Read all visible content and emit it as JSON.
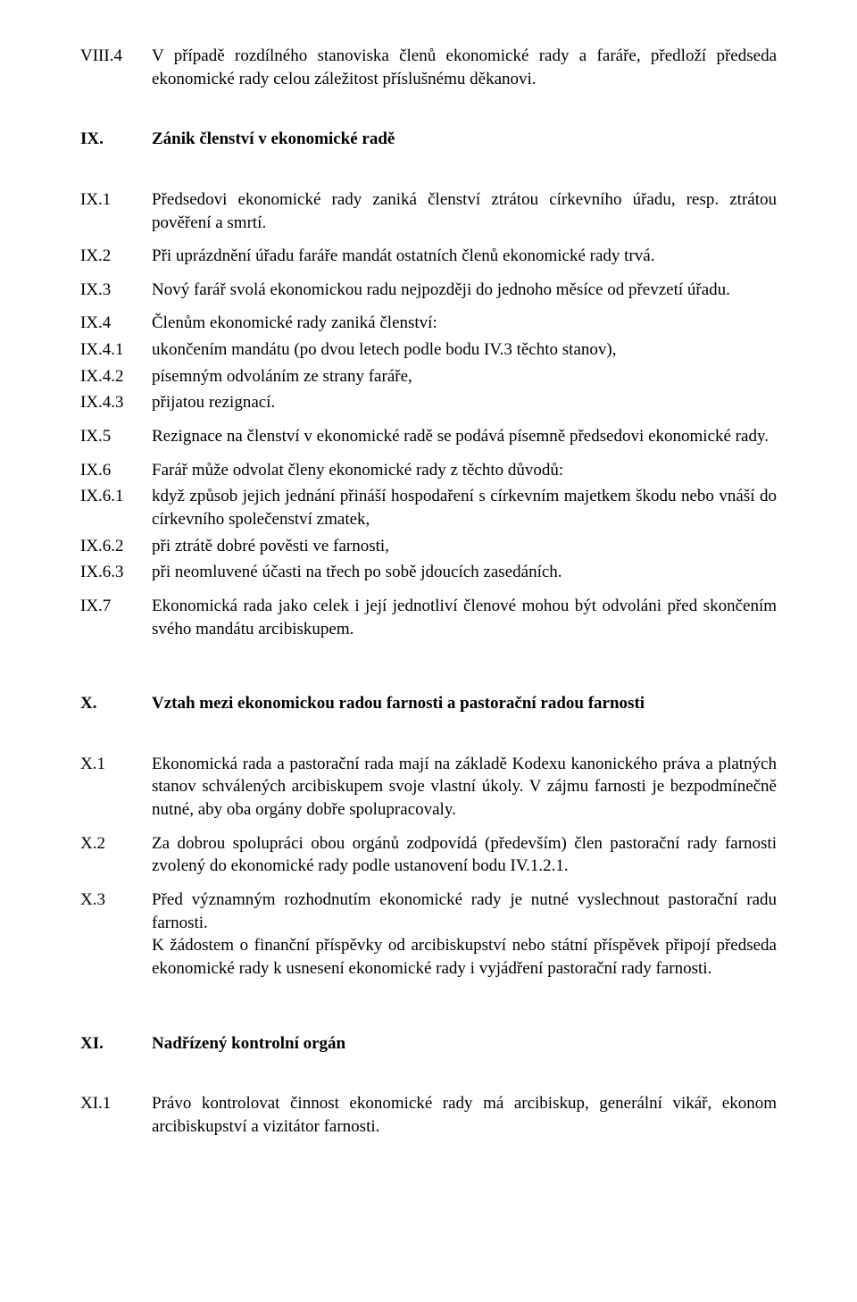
{
  "font": {
    "family": "Times New Roman",
    "size_pt": 14,
    "color": "#000000"
  },
  "background_color": "#ffffff",
  "items": [
    {
      "label": "VIII.4",
      "text": "V případě rozdílného stanoviska členů ekonomické rady a faráře, předloží předseda ekonomické rady celou záležitost příslušnému děkanovi.",
      "bold": false,
      "spacer_after": "section"
    },
    {
      "label": "IX.",
      "text": "Zánik členství v ekonomické radě",
      "bold": true,
      "spacer_after": "section"
    },
    {
      "label": "IX.1",
      "text": "Předsedovi ekonomické rady zaniká členství ztrátou církevního úřadu, resp. ztrátou pověření a smrtí.",
      "bold": false
    },
    {
      "label": "IX.2",
      "text": "Při uprázdnění úřadu faráře mandát ostatních členů ekonomické rady trvá.",
      "bold": false
    },
    {
      "label": "IX.3",
      "text": "Nový farář svolá ekonomickou radu nejpozději do jednoho měsíce od převzetí úřadu.",
      "bold": false
    },
    {
      "label": "IX.4",
      "text": "Členům ekonomické rady zaniká členství:",
      "bold": false,
      "tight": true
    },
    {
      "label": "IX.4.1",
      "text": "ukončením mandátu (po dvou letech podle bodu IV.3 těchto stanov),",
      "bold": false,
      "tight": true
    },
    {
      "label": "IX.4.2",
      "text": "písemným odvoláním ze strany faráře,",
      "bold": false,
      "tight": true
    },
    {
      "label": "IX.4.3",
      "text": "přijatou rezignací.",
      "bold": false
    },
    {
      "label": "IX.5",
      "text": "Rezignace na členství v ekonomické radě se podává písemně předsedovi ekonomické rady.",
      "bold": false
    },
    {
      "label": "IX.6",
      "text": "Farář může odvolat členy ekonomické rady z těchto důvodů:",
      "bold": false,
      "tight": true
    },
    {
      "label": "IX.6.1",
      "text": "když způsob jejich jednání přináší hospodaření s církevním majetkem škodu nebo vnáší do církevního společenství zmatek,",
      "bold": false,
      "tight": true
    },
    {
      "label": "IX.6.2",
      "text": "při ztrátě dobré pověsti ve farnosti,",
      "bold": false,
      "tight": true
    },
    {
      "label": "IX.6.3",
      "text": "při neomluvené účasti na třech po sobě jdoucích zasedáních.",
      "bold": false
    },
    {
      "label": "IX.7",
      "text": "Ekonomická rada jako celek i její jednotliví členové mohou být odvoláni před skončením svého mandátu arcibiskupem.",
      "bold": false,
      "spacer_after": "big"
    },
    {
      "label": "X.",
      "text": "Vztah mezi ekonomickou radou farnosti a pastorační radou farnosti",
      "bold": true,
      "spacer_after": "section"
    },
    {
      "label": "X.1",
      "text": "Ekonomická rada a pastorační rada mají na základě Kodexu kanonického práva a platných stanov schválených arcibiskupem svoje vlastní úkoly. V zájmu farnosti je bezpodmínečně nutné, aby oba orgány dobře spolupracovaly.",
      "bold": false
    },
    {
      "label": "X.2",
      "text": "Za dobrou spolupráci obou orgánů zodpovídá (především) člen pastorační rady farnosti zvolený do ekonomické rady podle ustanovení bodu IV.1.2.1.",
      "bold": false
    },
    {
      "label": "X.3",
      "text": "Před významným rozhodnutím ekonomické rady je nutné vyslechnout pastorační radu farnosti.\nK žádostem o finanční příspěvky od arcibiskupství nebo státní příspěvek připojí předseda ekonomické rady k usnesení ekonomické rady i vyjádření pastorační rady farnosti.",
      "bold": false,
      "spacer_after": "big"
    },
    {
      "label": "XI.",
      "text": "Nadřízený kontrolní orgán",
      "bold": true,
      "spacer_after": "section"
    },
    {
      "label": "XI.1",
      "text": "Právo kontrolovat činnost ekonomické rady má arcibiskup, generální vikář, ekonom arcibiskupství a vizitátor farnosti.",
      "bold": false
    }
  ]
}
